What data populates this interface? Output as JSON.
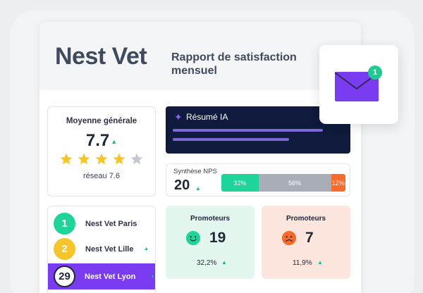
{
  "header": {
    "brand": "Nest Vet",
    "subtitle_line1": "Rapport de satisfaction",
    "subtitle_line2": "mensuel"
  },
  "average": {
    "title": "Moyenne générale",
    "value": "7.7",
    "trend_icon": "triangle-up-icon",
    "stars_filled": 4,
    "stars_total": 5,
    "network_label": "réseau 7.6"
  },
  "ai_summary": {
    "title": "Résumé IA",
    "icon": "sparkle-icon"
  },
  "nps": {
    "label": "Synthèse NPS",
    "value": "20",
    "promoters_pct": "32%",
    "passives_pct": "56%",
    "detractors_pct": "12%",
    "promoters_share": 0.32,
    "passives_share": 0.56,
    "detractors_share": 0.12
  },
  "locations": [
    {
      "rank": "1",
      "name": "Nest Vet Paris",
      "color": "#1ed49a"
    },
    {
      "rank": "2",
      "name": "Nest Vet Lille",
      "color": "#f6c42b"
    },
    {
      "rank": "29",
      "name": "Nest Vet Lyon",
      "color": "#ffffff"
    }
  ],
  "promoters_green": {
    "title": "Promoteurs",
    "value": "19",
    "pct": "32,2%",
    "face": "happy-face-icon"
  },
  "promoters_red": {
    "title": "Promoteurs",
    "value": "7",
    "pct": "11,9%",
    "face": "sad-face-icon"
  },
  "mail": {
    "icon": "envelope-icon",
    "badge": "1"
  },
  "colors": {
    "accent_purple": "#7a3cf0",
    "navy": "#0f1a3c",
    "green": "#1ed49a",
    "grey": "#a9adb8",
    "orange": "#fa6a2b",
    "star_gold": "#f6c42b"
  }
}
